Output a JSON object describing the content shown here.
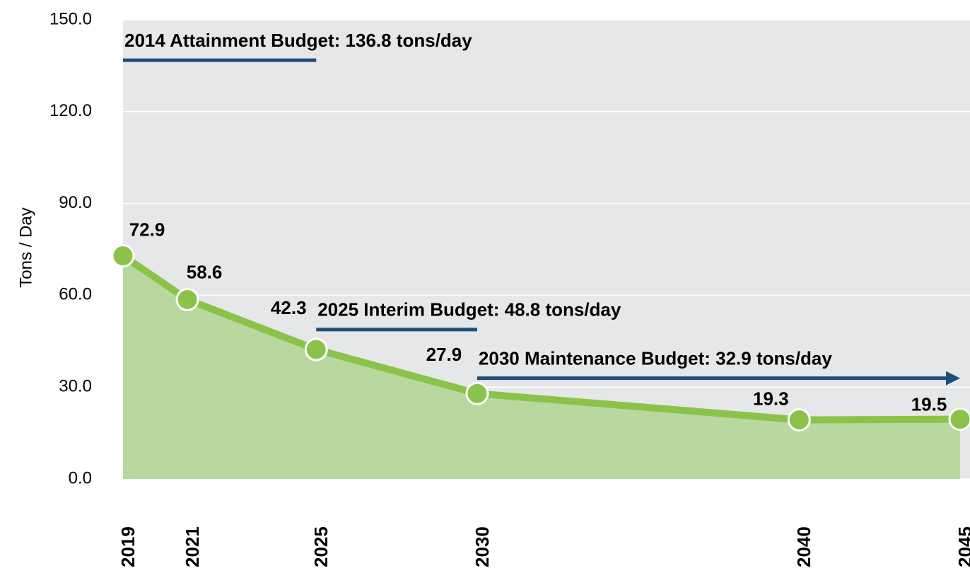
{
  "chart_data": {
    "type": "area",
    "ylabel": "Tons / Day",
    "x": [
      2019,
      2021,
      2025,
      2030,
      2040,
      2045
    ],
    "values": [
      72.9,
      58.6,
      42.3,
      27.9,
      19.3,
      19.5
    ],
    "color": "#8bc34a",
    "fill_color": "#b8d8a0",
    "xlim": [
      2019,
      2045
    ],
    "ylim": [
      0,
      150
    ],
    "yticks": [
      {
        "value": 0,
        "label": "0.0"
      },
      {
        "value": 30,
        "label": "30.0"
      },
      {
        "value": 60,
        "label": "60.0"
      },
      {
        "value": 90,
        "label": "90.0"
      },
      {
        "value": 120,
        "label": "120.0"
      },
      {
        "value": 150,
        "label": "150.0"
      }
    ],
    "grid": true,
    "budgets": [
      {
        "label": "2014 Attainment Budget: 136.8 tons/day",
        "value": 136.8,
        "start": 2019,
        "end": 2025,
        "arrow": false
      },
      {
        "label": "2025 Interim Budget: 48.8 tons/day",
        "value": 48.8,
        "start": 2025,
        "end": 2030,
        "arrow": false
      },
      {
        "label": "2030 Maintenance Budget: 32.9 tons/day",
        "value": 32.9,
        "start": 2030,
        "end": 2045,
        "arrow": true
      }
    ],
    "budget_color": "#1f4e79"
  }
}
